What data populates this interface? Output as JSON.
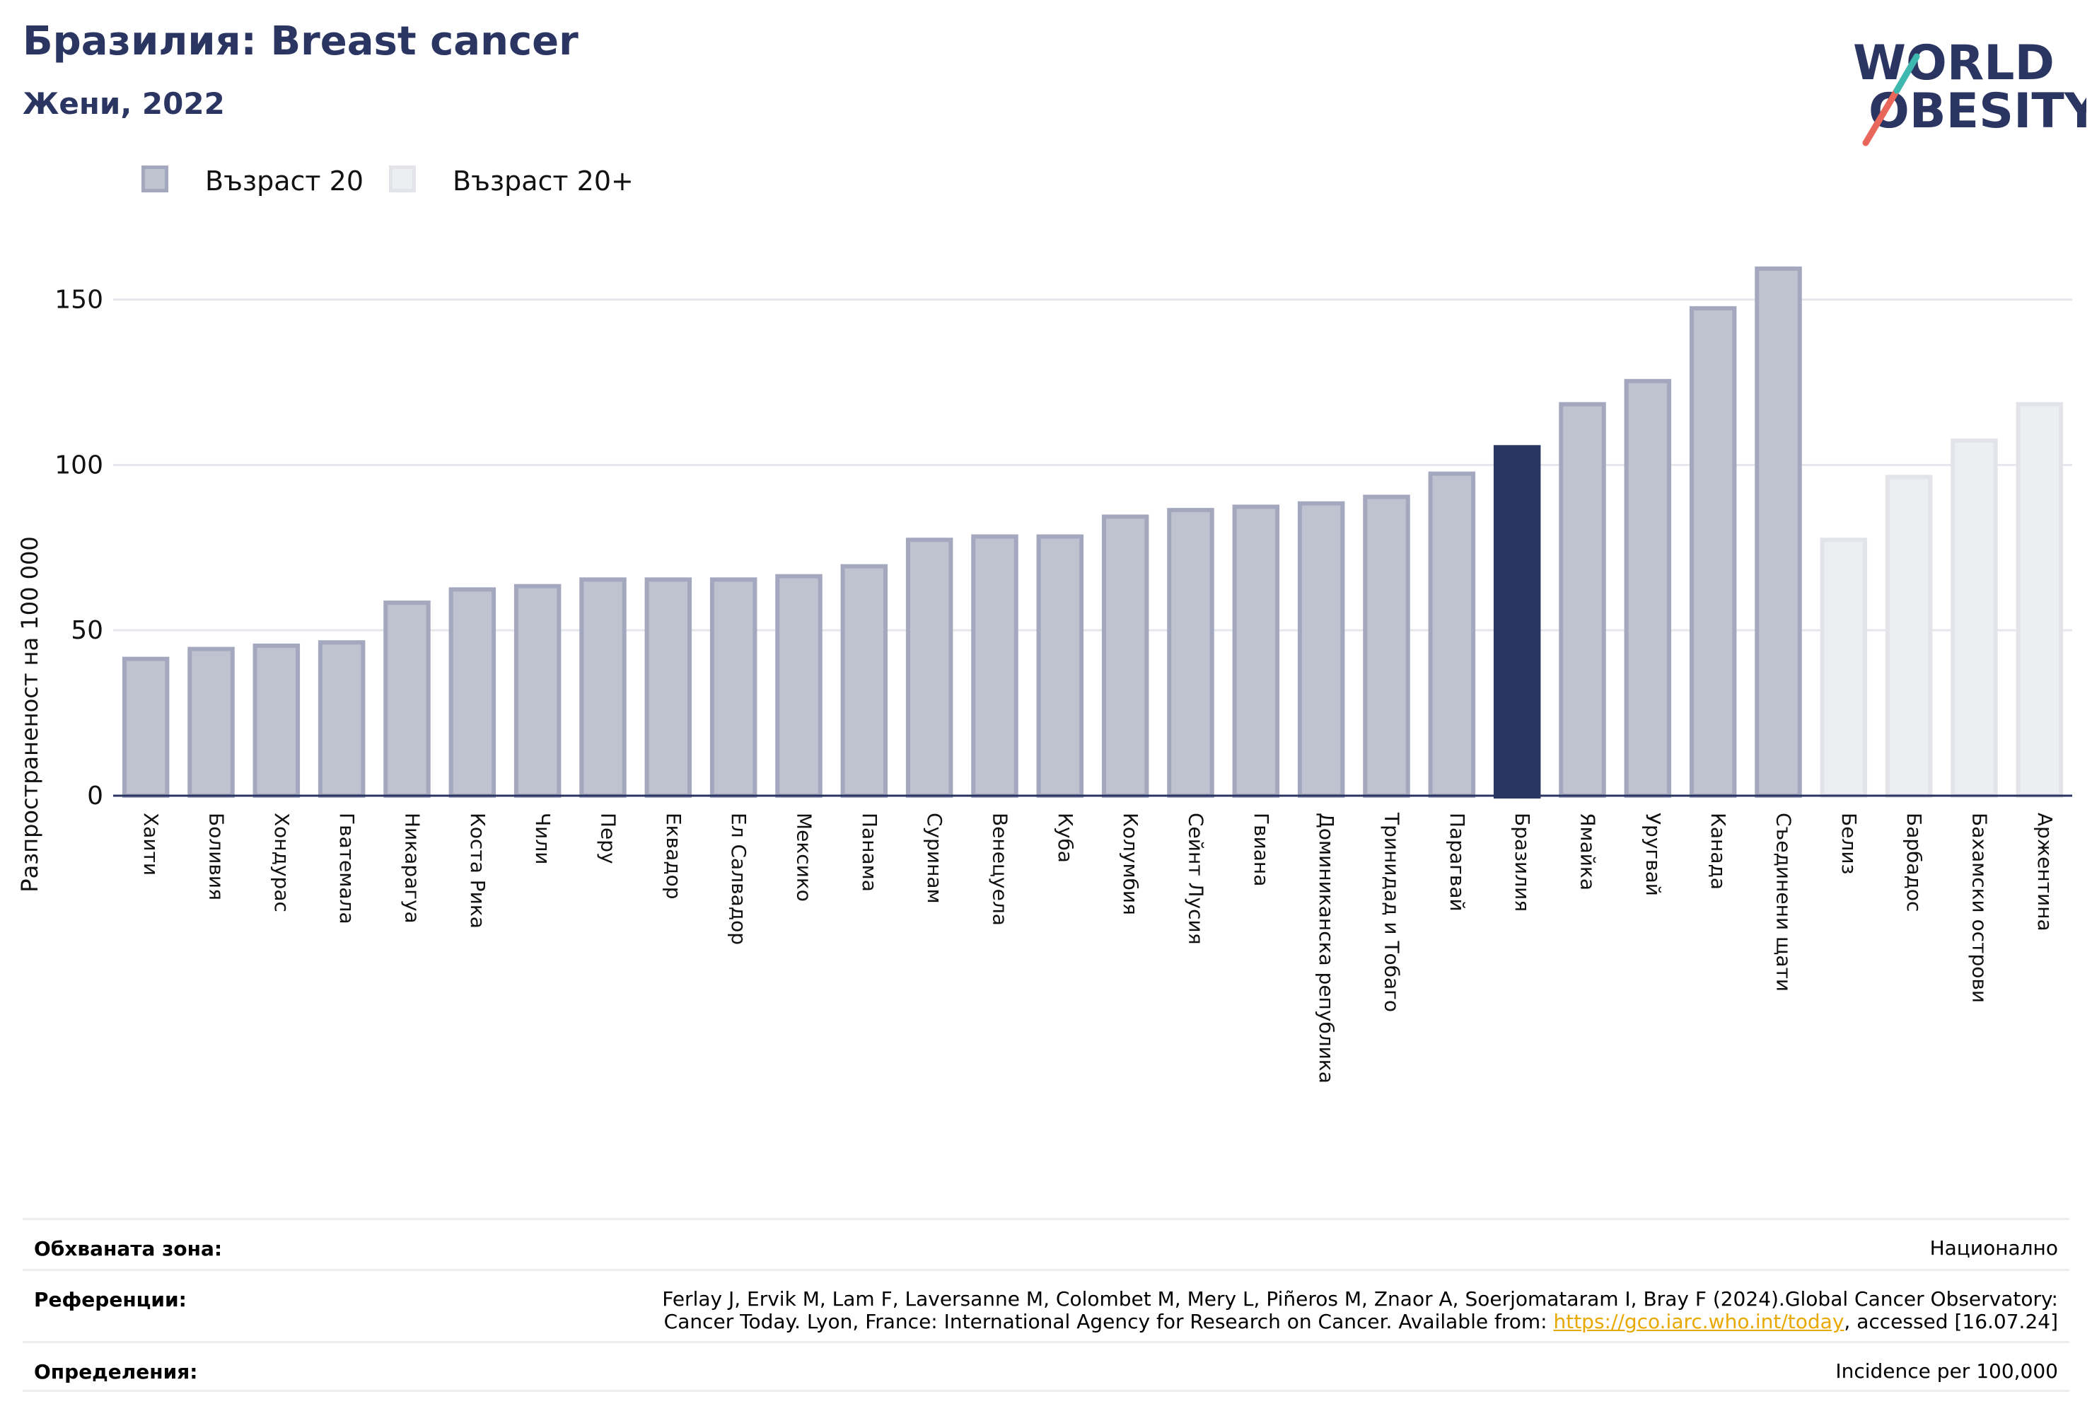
{
  "header": {
    "title": "Бразилия: Breast cancer",
    "subtitle": "Жени, 2022",
    "logo_line1": "WORLD",
    "logo_line2": "OBESITY"
  },
  "legend": {
    "items": [
      {
        "label": "Възраст 20",
        "fill": "#bfc2cf",
        "stroke": "#a3a8bf"
      },
      {
        "label": "Възраст 20+",
        "fill": "#edeef2",
        "stroke": "#e3e4ea"
      }
    ]
  },
  "colors": {
    "highlight": "#2b3561",
    "grid": "#e6e7ec",
    "axis": "#2b3561",
    "link": "#e8a800"
  },
  "chart_data": {
    "type": "bar",
    "ylabel": "Разпространеност  на 100 000",
    "ylim": [
      0,
      170
    ],
    "yticks": [
      0,
      50,
      100,
      150
    ],
    "grid": true,
    "legend_position": "top-left",
    "categories": [
      "Хаити",
      "Боливия",
      "Хондурас",
      "Гватемала",
      "Никарагуа",
      "Коста Рика",
      "Чили",
      "Перу",
      "Еквадор",
      "Ел Салвадор",
      "Мексико",
      "Панама",
      "Суринам",
      "Венецуела",
      "Куба",
      "Колумбия",
      "Сейнт Лусия",
      "Гвиана",
      "Доминиканска република",
      "Тринидад и Тобаго",
      "Парагвай",
      "Бразилия",
      "Ямайка",
      "Уругвай",
      "Канада",
      "Съединени щати",
      "Белиз",
      "Барбадос",
      "Бахамски острови",
      "Аржентина"
    ],
    "series": [
      {
        "name": "Възраст 20",
        "values": [
          42,
          45,
          46,
          47,
          59,
          63,
          64,
          66,
          66,
          66,
          67,
          70,
          78,
          79,
          79,
          85,
          87,
          88,
          89,
          91,
          98,
          null,
          119,
          126,
          148,
          160,
          null,
          null,
          null,
          null
        ]
      },
      {
        "name": "Възраст 20+",
        "values": [
          null,
          null,
          null,
          null,
          null,
          null,
          null,
          null,
          null,
          null,
          null,
          null,
          null,
          null,
          null,
          null,
          null,
          null,
          null,
          null,
          null,
          null,
          null,
          null,
          null,
          null,
          78,
          97,
          108,
          119
        ]
      }
    ],
    "highlight": {
      "category": "Бразилия",
      "value": 106
    }
  },
  "footer": {
    "coverage_label": "Обхваната зона:",
    "coverage_value": "Национално",
    "references_label": "Референции:",
    "references_line1": "Ferlay J, Ervik M, Lam F, Laversanne M, Colombet M, Mery L, Piñeros M, Znaor A, Soerjomataram I, Bray F (2024).Global Cancer Observatory:",
    "references_line2_pre": "Cancer Today. Lyon, France: International Agency for Research on Cancer. Available from: ",
    "references_link": "https://gco.iarc.who.int/today",
    "references_line2_post": ", accessed [16.07.24]",
    "definitions_label": "Определения:",
    "definitions_value": "Incidence per 100,000"
  }
}
